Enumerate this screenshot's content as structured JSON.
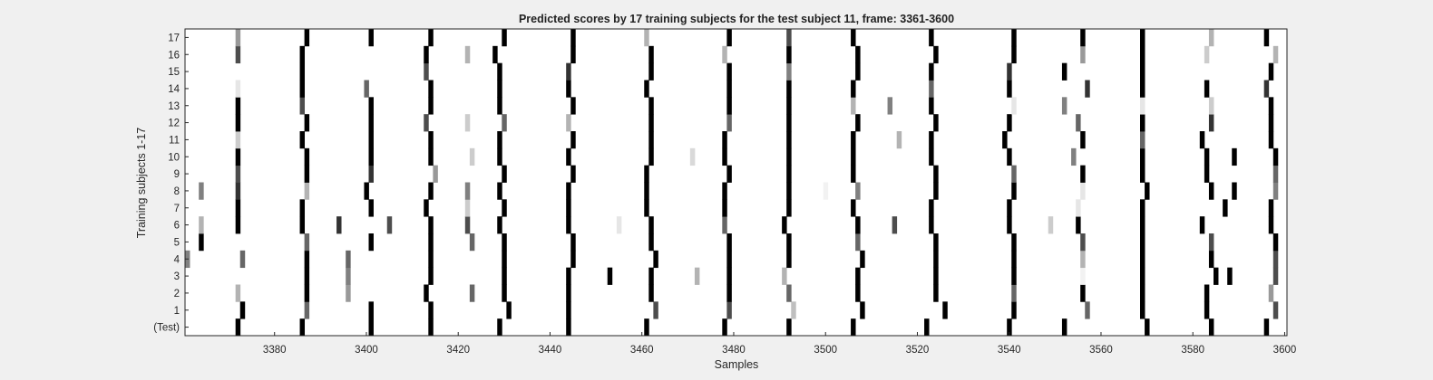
{
  "chart_data": {
    "type": "heatmap",
    "title": "Predicted scores by 17 training subjects for the test subject 11, frame: 3361-3600",
    "xlabel": "Samples",
    "ylabel": "Training subjects 1-17",
    "xlim": [
      3361,
      3600
    ],
    "xticks": [
      3380,
      3400,
      3420,
      3440,
      3460,
      3480,
      3500,
      3520,
      3540,
      3560,
      3580,
      3600
    ],
    "rows": [
      "(Test)",
      "1",
      "2",
      "3",
      "4",
      "5",
      "6",
      "7",
      "8",
      "9",
      "10",
      "11",
      "12",
      "13",
      "14",
      "15",
      "16",
      "17"
    ],
    "colormap": "gray-inverted",
    "value_range": [
      0,
      1
    ],
    "grid": false,
    "data": [
      [
        [
          3372,
          1
        ],
        [
          3386,
          1
        ],
        [
          3401,
          1
        ],
        [
          3414,
          1
        ],
        [
          3429,
          1
        ],
        [
          3444,
          1
        ],
        [
          3461,
          1
        ],
        [
          3478,
          1
        ],
        [
          3492,
          1
        ],
        [
          3506,
          1
        ],
        [
          3522,
          1
        ],
        [
          3540,
          1
        ],
        [
          3552,
          1
        ],
        [
          3570,
          1
        ],
        [
          3584,
          1
        ],
        [
          3596,
          1
        ]
      ],
      [
        [
          3373,
          1
        ],
        [
          3387,
          0.6
        ],
        [
          3401,
          1
        ],
        [
          3414,
          1
        ],
        [
          3431,
          1
        ],
        [
          3444,
          1
        ],
        [
          3463,
          0.7
        ],
        [
          3479,
          0.7
        ],
        [
          3493,
          0.25
        ],
        [
          3508,
          1
        ],
        [
          3526,
          1
        ],
        [
          3541,
          1
        ],
        [
          3557,
          0.6
        ],
        [
          3569,
          1
        ],
        [
          3583,
          1
        ],
        [
          3598,
          0.7
        ]
      ],
      [
        [
          3372,
          0.3
        ],
        [
          3387,
          1
        ],
        [
          3396,
          0.4
        ],
        [
          3413,
          1
        ],
        [
          3423,
          0.6
        ],
        [
          3430,
          1
        ],
        [
          3444,
          1
        ],
        [
          3462,
          1
        ],
        [
          3479,
          1
        ],
        [
          3492,
          0.6
        ],
        [
          3507,
          1
        ],
        [
          3524,
          1
        ],
        [
          3541,
          0.6
        ],
        [
          3556,
          1
        ],
        [
          3569,
          1
        ],
        [
          3583,
          1
        ],
        [
          3597,
          0.4
        ]
      ],
      [
        [
          3387,
          1
        ],
        [
          3396,
          0.5
        ],
        [
          3414,
          1
        ],
        [
          3430,
          1
        ],
        [
          3444,
          1
        ],
        [
          3453,
          1
        ],
        [
          3462,
          1
        ],
        [
          3472,
          0.3
        ],
        [
          3479,
          1
        ],
        [
          3491,
          0.3
        ],
        [
          3507,
          1
        ],
        [
          3524,
          1
        ],
        [
          3541,
          1
        ],
        [
          3556,
          0.05
        ],
        [
          3569,
          1
        ],
        [
          3585,
          1
        ],
        [
          3588,
          1
        ],
        [
          3598,
          0.7
        ]
      ],
      [
        [
          3361,
          0.5
        ],
        [
          3373,
          0.6
        ],
        [
          3387,
          1
        ],
        [
          3396,
          0.6
        ],
        [
          3414,
          1
        ],
        [
          3430,
          1
        ],
        [
          3445,
          1
        ],
        [
          3463,
          1
        ],
        [
          3479,
          1
        ],
        [
          3492,
          1
        ],
        [
          3508,
          1
        ],
        [
          3524,
          1
        ],
        [
          3541,
          1
        ],
        [
          3556,
          0.3
        ],
        [
          3569,
          1
        ],
        [
          3584,
          1
        ],
        [
          3598,
          0.7
        ]
      ],
      [
        [
          3364,
          1
        ],
        [
          3387,
          0.6
        ],
        [
          3401,
          1
        ],
        [
          3414,
          1
        ],
        [
          3423,
          0.6
        ],
        [
          3430,
          1
        ],
        [
          3445,
          1
        ],
        [
          3462,
          1
        ],
        [
          3479,
          1
        ],
        [
          3492,
          1
        ],
        [
          3507,
          0.6
        ],
        [
          3524,
          1
        ],
        [
          3541,
          1
        ],
        [
          3556,
          0.7
        ],
        [
          3569,
          1
        ],
        [
          3584,
          0.7
        ],
        [
          3598,
          1
        ]
      ],
      [
        [
          3364,
          0.3
        ],
        [
          3372,
          1
        ],
        [
          3386,
          1
        ],
        [
          3394,
          0.8
        ],
        [
          3405,
          0.7
        ],
        [
          3414,
          1
        ],
        [
          3422,
          0.7
        ],
        [
          3429,
          1
        ],
        [
          3444,
          1
        ],
        [
          3455,
          0.1
        ],
        [
          3462,
          1
        ],
        [
          3478,
          0.6
        ],
        [
          3491,
          1
        ],
        [
          3507,
          1
        ],
        [
          3515,
          0.7
        ],
        [
          3523,
          1
        ],
        [
          3540,
          1
        ],
        [
          3549,
          0.2
        ],
        [
          3555,
          1
        ],
        [
          3569,
          1
        ],
        [
          3582,
          1
        ],
        [
          3597,
          1
        ]
      ],
      [
        [
          3372,
          1
        ],
        [
          3386,
          1
        ],
        [
          3401,
          1
        ],
        [
          3413,
          1
        ],
        [
          3422,
          0.2
        ],
        [
          3430,
          1
        ],
        [
          3444,
          1
        ],
        [
          3461,
          1
        ],
        [
          3478,
          1
        ],
        [
          3492,
          1
        ],
        [
          3506,
          1
        ],
        [
          3523,
          1
        ],
        [
          3540,
          1
        ],
        [
          3555,
          0.1
        ],
        [
          3569,
          1
        ],
        [
          3587,
          1
        ],
        [
          3597,
          1
        ]
      ],
      [
        [
          3364,
          0.5
        ],
        [
          3372,
          0.8
        ],
        [
          3387,
          0.3
        ],
        [
          3400,
          1
        ],
        [
          3414,
          1
        ],
        [
          3422,
          0.5
        ],
        [
          3429,
          1
        ],
        [
          3444,
          1
        ],
        [
          3461,
          1
        ],
        [
          3478,
          1
        ],
        [
          3492,
          1
        ],
        [
          3500,
          0.05
        ],
        [
          3507,
          0.5
        ],
        [
          3524,
          1
        ],
        [
          3541,
          1
        ],
        [
          3556,
          0.1
        ],
        [
          3570,
          1
        ],
        [
          3584,
          1
        ],
        [
          3589,
          1
        ],
        [
          3598,
          0.5
        ]
      ],
      [
        [
          3372,
          0.7
        ],
        [
          3387,
          1
        ],
        [
          3401,
          0.8
        ],
        [
          3415,
          0.4
        ],
        [
          3430,
          1
        ],
        [
          3445,
          1
        ],
        [
          3461,
          1
        ],
        [
          3479,
          1
        ],
        [
          3492,
          1
        ],
        [
          3506,
          1
        ],
        [
          3524,
          1
        ],
        [
          3541,
          0.6
        ],
        [
          3556,
          1
        ],
        [
          3569,
          1
        ],
        [
          3583,
          1
        ],
        [
          3598,
          0.6
        ]
      ],
      [
        [
          3372,
          1
        ],
        [
          3387,
          1
        ],
        [
          3401,
          1
        ],
        [
          3414,
          1
        ],
        [
          3423,
          0.2
        ],
        [
          3429,
          1
        ],
        [
          3444,
          1
        ],
        [
          3462,
          1
        ],
        [
          3471,
          0.15
        ],
        [
          3478,
          1
        ],
        [
          3492,
          1
        ],
        [
          3506,
          1
        ],
        [
          3523,
          1
        ],
        [
          3540,
          1
        ],
        [
          3554,
          0.5
        ],
        [
          3569,
          1
        ],
        [
          3583,
          1
        ],
        [
          3589,
          1
        ],
        [
          3598,
          1
        ]
      ],
      [
        [
          3372,
          0.2
        ],
        [
          3386,
          1
        ],
        [
          3401,
          1
        ],
        [
          3414,
          1
        ],
        [
          3429,
          1
        ],
        [
          3445,
          1
        ],
        [
          3462,
          1
        ],
        [
          3478,
          1
        ],
        [
          3492,
          1
        ],
        [
          3506,
          1
        ],
        [
          3516,
          0.3
        ],
        [
          3523,
          1
        ],
        [
          3539,
          1
        ],
        [
          3556,
          1
        ],
        [
          3569,
          0.6
        ],
        [
          3582,
          1
        ],
        [
          3597,
          1
        ]
      ],
      [
        [
          3372,
          1
        ],
        [
          3387,
          1
        ],
        [
          3401,
          1
        ],
        [
          3413,
          0.7
        ],
        [
          3422,
          0.2
        ],
        [
          3430,
          0.6
        ],
        [
          3444,
          0.3
        ],
        [
          3462,
          1
        ],
        [
          3479,
          0.6
        ],
        [
          3492,
          1
        ],
        [
          3507,
          1
        ],
        [
          3524,
          1
        ],
        [
          3540,
          1
        ],
        [
          3555,
          0.6
        ],
        [
          3569,
          1
        ],
        [
          3584,
          0.8
        ],
        [
          3597,
          1
        ]
      ],
      [
        [
          3372,
          1
        ],
        [
          3386,
          0.7
        ],
        [
          3401,
          1
        ],
        [
          3414,
          1
        ],
        [
          3429,
          1
        ],
        [
          3445,
          1
        ],
        [
          3462,
          1
        ],
        [
          3479,
          1
        ],
        [
          3492,
          1
        ],
        [
          3506,
          0.3
        ],
        [
          3514,
          0.5
        ],
        [
          3523,
          1
        ],
        [
          3541,
          0.1
        ],
        [
          3552,
          0.5
        ],
        [
          3569,
          0.1
        ],
        [
          3584,
          0.2
        ],
        [
          3597,
          1
        ]
      ],
      [
        [
          3372,
          0.1
        ],
        [
          3386,
          1
        ],
        [
          3400,
          0.6
        ],
        [
          3414,
          1
        ],
        [
          3429,
          1
        ],
        [
          3444,
          1
        ],
        [
          3461,
          1
        ],
        [
          3479,
          1
        ],
        [
          3492,
          1
        ],
        [
          3506,
          1
        ],
        [
          3523,
          0.6
        ],
        [
          3540,
          1
        ],
        [
          3557,
          0.8
        ],
        [
          3569,
          1
        ],
        [
          3583,
          1
        ],
        [
          3596,
          0.8
        ]
      ],
      [
        [
          3386,
          1
        ],
        [
          3413,
          0.7
        ],
        [
          3429,
          1
        ],
        [
          3444,
          0.8
        ],
        [
          3462,
          1
        ],
        [
          3479,
          1
        ],
        [
          3492,
          0.5
        ],
        [
          3507,
          1
        ],
        [
          3523,
          1
        ],
        [
          3540,
          0.8
        ],
        [
          3552,
          1
        ],
        [
          3569,
          1
        ],
        [
          3597,
          1
        ]
      ],
      [
        [
          3372,
          0.7
        ],
        [
          3386,
          1
        ],
        [
          3413,
          1
        ],
        [
          3422,
          0.3
        ],
        [
          3428,
          1
        ],
        [
          3445,
          1
        ],
        [
          3462,
          1
        ],
        [
          3478,
          0.3
        ],
        [
          3492,
          1
        ],
        [
          3507,
          1
        ],
        [
          3524,
          1
        ],
        [
          3541,
          1
        ],
        [
          3556,
          0.4
        ],
        [
          3569,
          1
        ],
        [
          3583,
          0.2
        ],
        [
          3598,
          0.3
        ]
      ],
      [
        [
          3372,
          0.4
        ],
        [
          3387,
          1
        ],
        [
          3401,
          1
        ],
        [
          3414,
          1
        ],
        [
          3430,
          1
        ],
        [
          3445,
          1
        ],
        [
          3461,
          0.3
        ],
        [
          3479,
          1
        ],
        [
          3492,
          0.7
        ],
        [
          3506,
          1
        ],
        [
          3523,
          1
        ],
        [
          3541,
          1
        ],
        [
          3556,
          1
        ],
        [
          3569,
          1
        ],
        [
          3584,
          0.3
        ],
        [
          3596,
          1
        ]
      ]
    ]
  }
}
